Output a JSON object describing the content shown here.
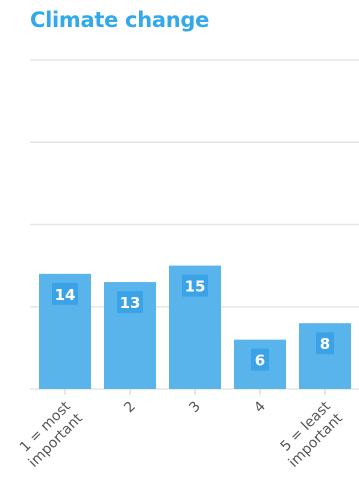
{
  "chart_data": {
    "type": "bar",
    "title": "Climate change",
    "categories": [
      "1 = most important",
      "2",
      "3",
      "4",
      "5 = least important"
    ],
    "tick_labels": [
      [
        "1 = most",
        "important"
      ],
      [
        "2"
      ],
      [
        "3"
      ],
      [
        "4"
      ],
      [
        "5 = least",
        "important"
      ]
    ],
    "values": [
      14,
      13,
      15,
      6,
      8
    ],
    "data_labels": [
      "14",
      "13",
      "15",
      "6",
      "8"
    ],
    "ylim": [
      0,
      40
    ],
    "grid": true,
    "legend": "none",
    "bar_color": "#5ab4ec",
    "label_box_color": "#3aa2e6",
    "gridline_color": "#e6e6e6"
  }
}
